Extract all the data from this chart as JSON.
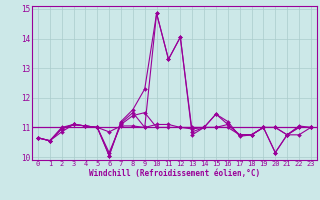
{
  "xlabel": "Windchill (Refroidissement éolien,°C)",
  "xlim": [
    -0.5,
    23.5
  ],
  "ylim": [
    9.9,
    15.1
  ],
  "yticks": [
    10,
    11,
    12,
    13,
    14,
    15
  ],
  "xticks": [
    0,
    1,
    2,
    3,
    4,
    5,
    6,
    7,
    8,
    9,
    10,
    11,
    12,
    13,
    14,
    15,
    16,
    17,
    18,
    19,
    20,
    21,
    22,
    23
  ],
  "bg_color": "#cce8e8",
  "grid_color": "#aacccc",
  "line_color": "#990099",
  "series1": [
    10.65,
    10.55,
    10.85,
    11.1,
    11.05,
    11.0,
    10.05,
    11.15,
    11.5,
    11.0,
    14.85,
    13.3,
    14.05,
    10.75,
    11.0,
    11.45,
    11.1,
    10.75,
    10.75,
    11.0,
    10.15,
    10.75,
    11.05,
    11.0
  ],
  "series2": [
    10.65,
    10.55,
    10.95,
    11.1,
    11.05,
    11.0,
    10.85,
    11.05,
    11.05,
    11.0,
    11.1,
    11.1,
    11.0,
    10.95,
    11.0,
    11.0,
    11.1,
    10.75,
    10.75,
    11.0,
    11.0,
    10.75,
    11.0,
    11.0
  ],
  "series3": [
    10.65,
    10.55,
    11.0,
    11.1,
    11.05,
    11.0,
    10.05,
    11.2,
    11.6,
    12.3,
    14.85,
    13.3,
    14.05,
    10.85,
    11.0,
    11.45,
    11.2,
    10.7,
    10.75,
    11.0,
    10.15,
    10.75,
    10.75,
    11.0
  ],
  "series4": [
    10.65,
    10.55,
    10.95,
    11.1,
    11.05,
    11.0,
    10.15,
    11.1,
    11.4,
    11.5,
    11.0,
    11.0,
    11.0,
    11.0,
    11.0,
    11.0,
    11.0,
    10.75,
    10.75,
    11.0,
    11.0,
    10.75,
    11.0,
    11.0
  ],
  "hline_y": 11.0,
  "marker": "D",
  "markersize": 2.0,
  "linewidth": 0.8,
  "tick_fontsize": 5.0,
  "xlabel_fontsize": 5.5
}
